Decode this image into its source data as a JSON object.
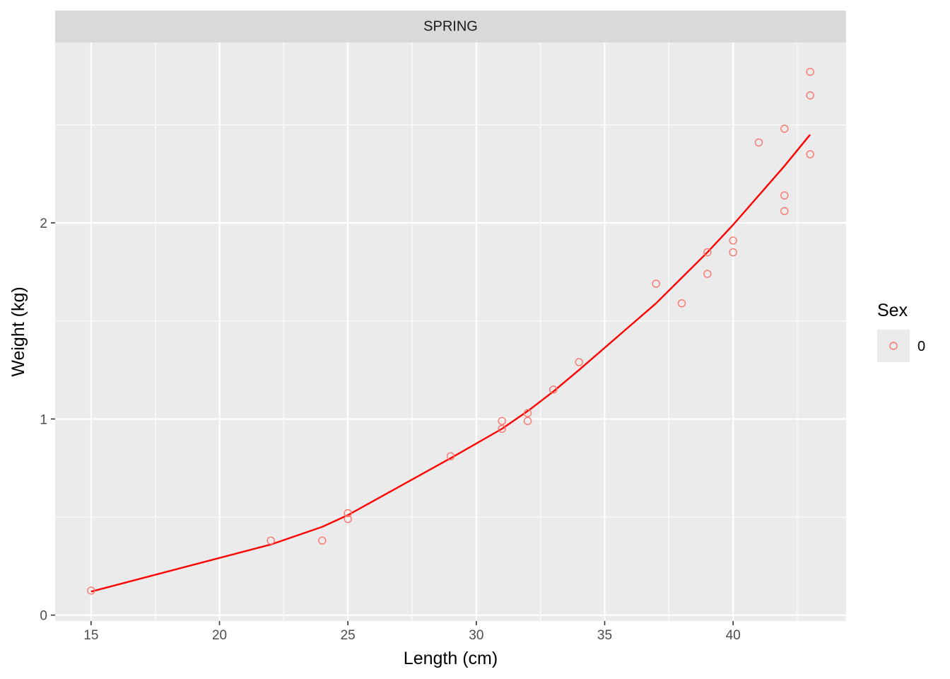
{
  "chart_data": {
    "type": "scatter",
    "facet_label": "SPRING",
    "xlabel": "Length (cm)",
    "ylabel": "Weight (kg)",
    "xlim": [
      13.6,
      44.4
    ],
    "ylim": [
      -0.03,
      2.92
    ],
    "x_ticks": [
      15,
      20,
      25,
      30,
      35,
      40
    ],
    "y_ticks": [
      0,
      1,
      2
    ],
    "grid": true,
    "legend": {
      "title": "Sex",
      "position": "right",
      "entries": [
        {
          "label": "0"
        }
      ]
    },
    "colors": {
      "points": "#F8766D",
      "fit_line": "#FF0000",
      "panel_bg": "#EBEBEB",
      "strip_bg": "#D9D9D9",
      "grid": "#FFFFFF"
    },
    "series": [
      {
        "name": "0",
        "kind": "points",
        "points": [
          [
            15,
            0.125
          ],
          [
            22,
            0.38
          ],
          [
            24,
            0.38
          ],
          [
            25,
            0.52
          ],
          [
            25,
            0.49
          ],
          [
            29,
            0.81
          ],
          [
            31,
            0.99
          ],
          [
            31,
            0.95
          ],
          [
            32,
            1.03
          ],
          [
            32,
            0.99
          ],
          [
            33,
            1.15
          ],
          [
            34,
            1.29
          ],
          [
            37,
            1.69
          ],
          [
            38,
            1.59
          ],
          [
            39,
            1.85
          ],
          [
            39,
            1.74
          ],
          [
            40,
            1.91
          ],
          [
            40,
            1.85
          ],
          [
            41,
            2.41
          ],
          [
            42,
            2.48
          ],
          [
            42,
            2.14
          ],
          [
            42,
            2.06
          ],
          [
            43,
            2.77
          ],
          [
            43,
            2.65
          ],
          [
            43,
            2.35
          ]
        ]
      },
      {
        "kind": "line",
        "points": [
          [
            15,
            0.12
          ],
          [
            22,
            0.36
          ],
          [
            24,
            0.45
          ],
          [
            25,
            0.51
          ],
          [
            29,
            0.8
          ],
          [
            31,
            0.95
          ],
          [
            32,
            1.04
          ],
          [
            33,
            1.14
          ],
          [
            34,
            1.25
          ],
          [
            37,
            1.59
          ],
          [
            38,
            1.72
          ],
          [
            39,
            1.85
          ],
          [
            40,
            1.99
          ],
          [
            41,
            2.14
          ],
          [
            42,
            2.29
          ],
          [
            43,
            2.45
          ]
        ]
      }
    ]
  }
}
